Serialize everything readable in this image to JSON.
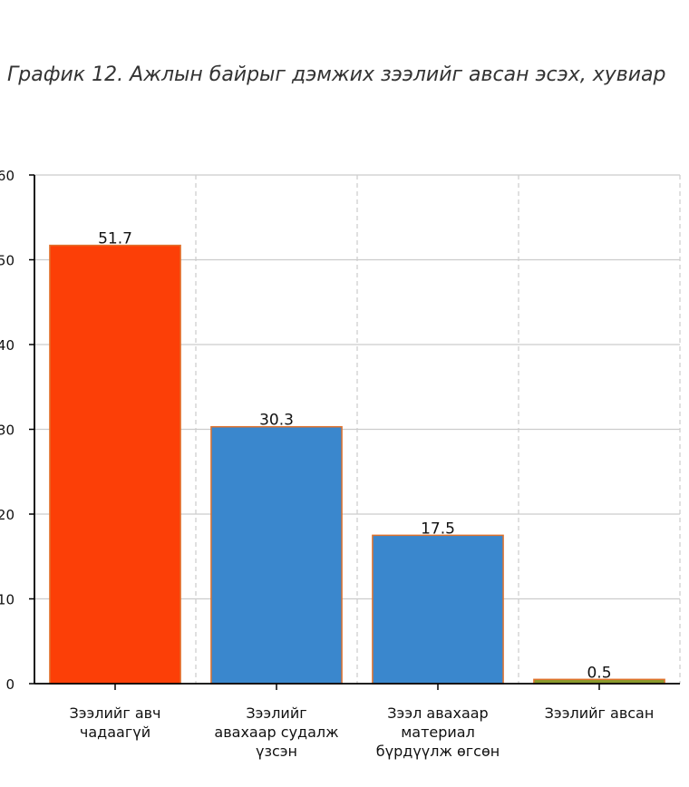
{
  "colors": {
    "bar_primary": "#fc3f07",
    "bar_secondary": "#3a87cd",
    "bar_tertiary": "#8a9a2c",
    "bar_outline": "#e0722c",
    "grid": "#cccccc",
    "axis": "#000000"
  },
  "chart_data": {
    "type": "bar",
    "title": "График 12. Ажлын байрыг дэмжих зээлийг авсан эсэх, хувиар",
    "xlabel": "",
    "ylabel": "",
    "ylim": [
      0,
      60
    ],
    "yticks": [
      0,
      10,
      20,
      30,
      40,
      50,
      60
    ],
    "grid": true,
    "categories": [
      [
        "Зээлийг авч",
        "чадаагүй"
      ],
      [
        "Зээлийг",
        "авахаар судалж",
        "үзсэн"
      ],
      [
        "Зээл авахаар",
        "материал",
        "бүрдүүлж өгсөн"
      ],
      [
        "Зээлийг авсан"
      ]
    ],
    "values": [
      51.7,
      30.3,
      17.5,
      0.5
    ],
    "value_labels": [
      "51.7",
      "30.3",
      "17.5",
      "0.5"
    ]
  }
}
